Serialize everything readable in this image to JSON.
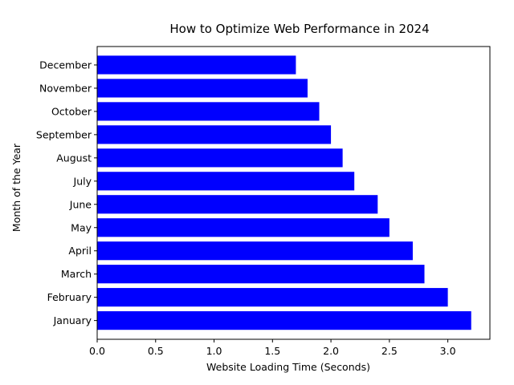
{
  "chart_data": {
    "type": "bar",
    "orientation": "horizontal",
    "title": "How to Optimize Web Performance in 2024",
    "xlabel": "Website Loading Time (Seconds)",
    "ylabel": "Month of the Year",
    "categories": [
      "January",
      "February",
      "March",
      "April",
      "May",
      "June",
      "July",
      "August",
      "September",
      "October",
      "November",
      "December"
    ],
    "values": [
      3.2,
      3.0,
      2.8,
      2.7,
      2.5,
      2.4,
      2.2,
      2.1,
      2.0,
      1.9,
      1.8,
      1.7
    ],
    "xlim": [
      0,
      3.36
    ],
    "xticks": [
      "0.0",
      "0.5",
      "1.0",
      "1.5",
      "2.0",
      "2.5",
      "3.0"
    ],
    "bar_color": "#0000ff",
    "grid": false,
    "legend": "none"
  }
}
